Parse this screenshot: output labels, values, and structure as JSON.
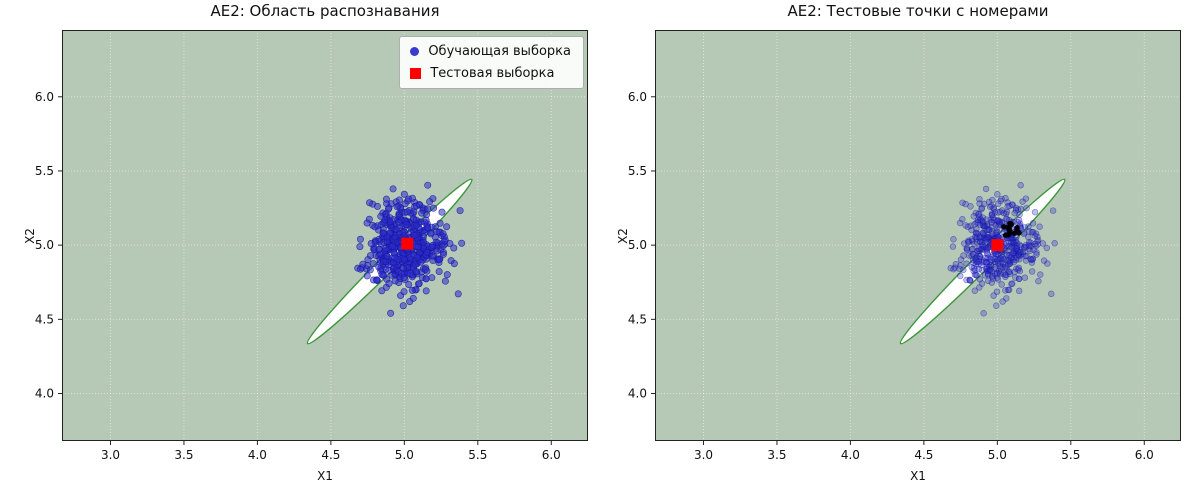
{
  "figure": {
    "background_color": "#ffffff"
  },
  "chart_data": [
    {
      "type": "scatter",
      "title": "AE2: Область распознавания",
      "xlabel": "X1",
      "ylabel": "X2",
      "xlim": [
        2.67,
        6.25
      ],
      "ylim": [
        3.68,
        6.45
      ],
      "xticks": [
        3.0,
        3.5,
        4.0,
        4.5,
        5.0,
        5.5,
        6.0
      ],
      "yticks": [
        4.0,
        4.5,
        5.0,
        5.5,
        6.0
      ],
      "grid": true,
      "grid_color": "rgba(255,255,255,0.5)",
      "background_color": "#b6c9b6",
      "axes_color": "#222222",
      "region": {
        "shape": "rotated_ellipse",
        "center": [
          4.9,
          4.89
        ],
        "rx": 0.79,
        "ry": 0.055,
        "angle_deg": 45,
        "fill": "#ffffff",
        "stroke": "#3c9639",
        "stroke_width": 1.4
      },
      "series": [
        {
          "name": "Обучающая выборка",
          "data_name": "train-point",
          "kind": "gaussian_cluster",
          "center": [
            5.0,
            5.0
          ],
          "std": 0.14,
          "n": 500,
          "seed": 42,
          "marker": "circle",
          "color": "#2b2bcc",
          "edge_color": "#15159e",
          "alpha": 0.55,
          "radius": 3.2
        },
        {
          "name": "Тестовая выборка",
          "data_name": "test-marker",
          "kind": "points",
          "points": [
            [
              5.02,
              5.01
            ]
          ],
          "marker": "square",
          "color": "#ff0000",
          "size": 12
        }
      ],
      "legend": {
        "position": "upper right",
        "entries": [
          {
            "label": "Обучающая выборка",
            "marker": "circle",
            "color": "#3a3ad1"
          },
          {
            "label": "Тестовая выборка",
            "marker": "square",
            "color": "#ff0000"
          }
        ]
      }
    },
    {
      "type": "scatter",
      "title": "AE2: Тестовые точки с номерами",
      "xlabel": "X1",
      "ylabel": "X2",
      "xlim": [
        2.67,
        6.25
      ],
      "ylim": [
        3.68,
        6.45
      ],
      "xticks": [
        3.0,
        3.5,
        4.0,
        4.5,
        5.0,
        5.5,
        6.0
      ],
      "yticks": [
        4.0,
        4.5,
        5.0,
        5.5,
        6.0
      ],
      "grid": true,
      "grid_color": "rgba(255,255,255,0.5)",
      "background_color": "#b6c9b6",
      "axes_color": "#222222",
      "region": {
        "shape": "rotated_ellipse",
        "center": [
          4.9,
          4.89
        ],
        "rx": 0.79,
        "ry": 0.055,
        "angle_deg": 45,
        "fill": "#ffffff",
        "stroke": "#3c9639",
        "stroke_width": 1.4
      },
      "series": [
        {
          "name": "Обучающая выборка",
          "data_name": "train-point",
          "kind": "gaussian_cluster",
          "center": [
            5.0,
            5.0
          ],
          "std": 0.14,
          "n": 500,
          "seed": 42,
          "marker": "circle",
          "color": "#2b2bcc",
          "edge_color": "#15159e",
          "alpha": 0.3,
          "radius": 2.9
        },
        {
          "name": "Тестовые точки",
          "data_name": "numbered-test-point",
          "kind": "gaussian_cluster",
          "center": [
            5.1,
            5.09
          ],
          "std": 0.032,
          "n": 15,
          "seed": 9,
          "marker": "circle",
          "color": "#000000",
          "edge_color": "#000000",
          "alpha": 0.95,
          "radius": 2.4
        },
        {
          "name": "Тестовая выборка",
          "data_name": "test-marker",
          "kind": "points",
          "points": [
            [
              5.0,
              5.0
            ]
          ],
          "marker": "square",
          "color": "#ff0000",
          "size": 12
        }
      ],
      "legend": null
    }
  ]
}
